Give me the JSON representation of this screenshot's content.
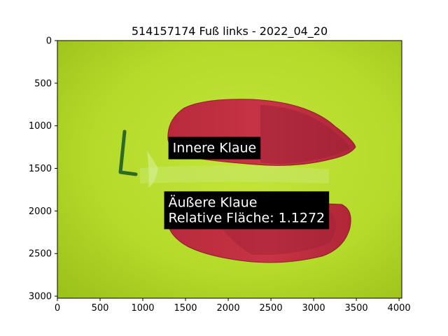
{
  "title": "514157174 Fuß links - 2022_04_20",
  "image": {
    "description_colors": {
      "background": "#b7dc2b",
      "claw_red": "#c8303f",
      "claw_dark_red": "#9b1f33",
      "mark": "#2f6a22"
    }
  },
  "axes": {
    "x_ticks": [
      "0",
      "500",
      "1000",
      "1500",
      "2000",
      "2500",
      "3000",
      "3500",
      "4000"
    ],
    "x_values": [
      0,
      500,
      1000,
      1500,
      2000,
      2500,
      3000,
      3500,
      4000
    ],
    "y_ticks": [
      "0",
      "500",
      "1000",
      "1500",
      "2000",
      "2500",
      "3000"
    ],
    "y_values": [
      0,
      500,
      1000,
      1500,
      2000,
      2500,
      3000
    ],
    "xlim": [
      0,
      4032
    ],
    "ylim": [
      3024,
      0
    ]
  },
  "annotations": {
    "inner": {
      "label": "Innere Klaue",
      "x": 1300,
      "y": 1130
    },
    "outer": {
      "line1": "Äußere Klaue",
      "line2": "Relative Fläche: 1.1272",
      "x": 1250,
      "y": 1770
    }
  },
  "colors": {
    "annotation_box": "#000000",
    "annotation_text": "#ffffff"
  }
}
